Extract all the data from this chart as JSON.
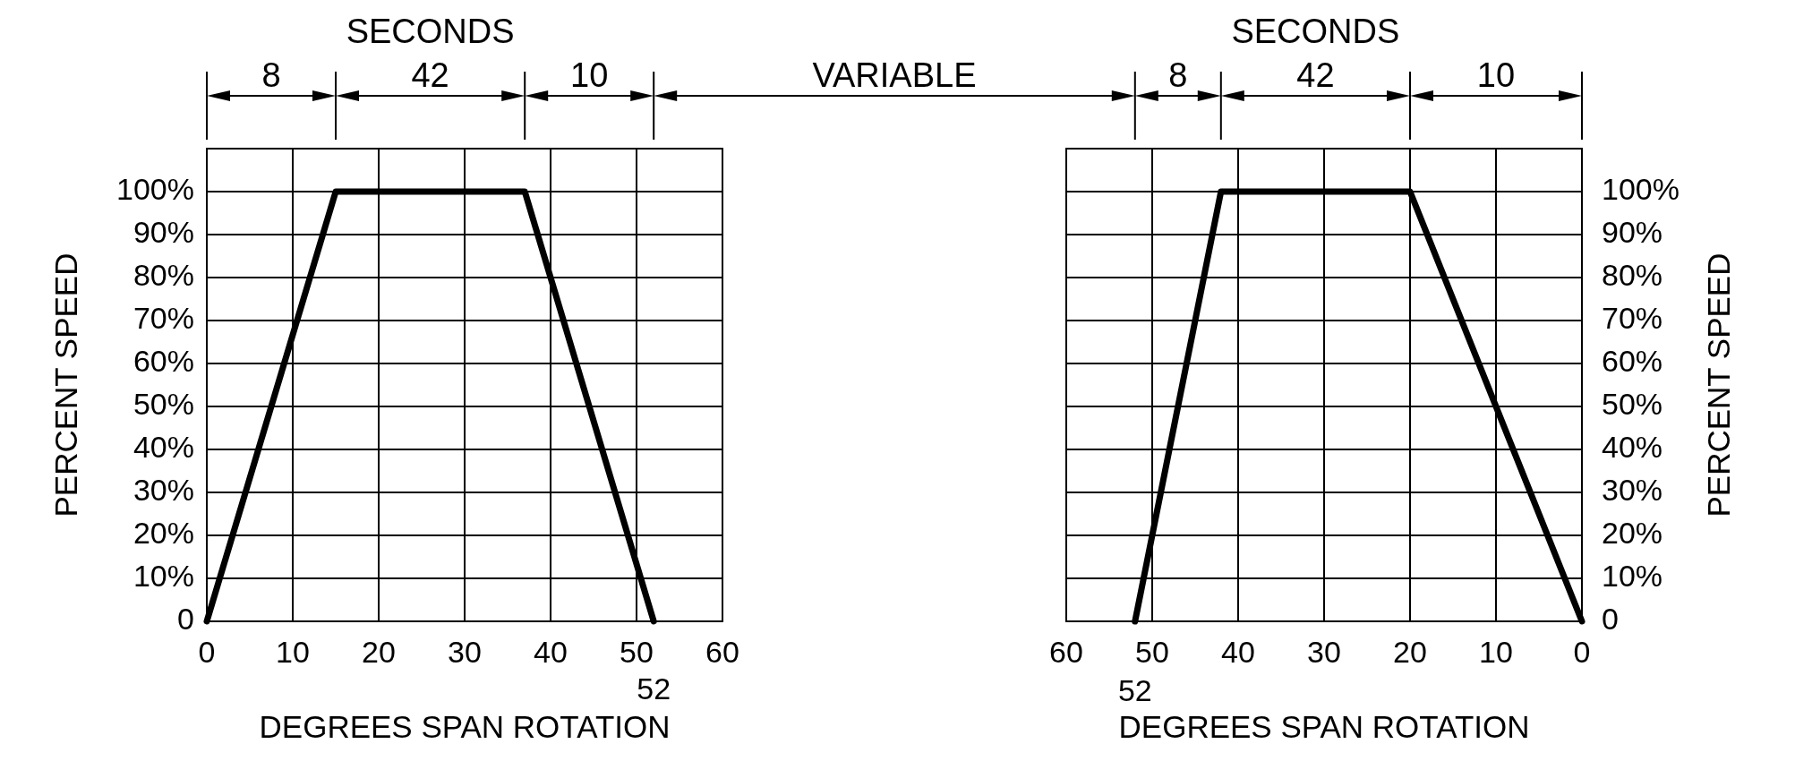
{
  "chart_data": [
    {
      "type": "line",
      "xlabel": "DEGREES SPAN ROTATION",
      "ylabel": "PERCENT SPEED",
      "x": [
        0,
        15,
        37,
        52
      ],
      "series": [
        {
          "color": "#000000",
          "values": [
            0,
            100,
            100,
            0
          ]
        }
      ],
      "xlim": [
        0,
        60
      ],
      "xticks": [
        0,
        10,
        20,
        30,
        40,
        50,
        60
      ],
      "ylim": [
        0,
        110
      ],
      "yticks": [
        0,
        {
          "value": 10,
          "label": "10%"
        },
        {
          "value": 20,
          "label": "20%"
        },
        {
          "value": 30,
          "label": "30%"
        },
        {
          "value": 40,
          "label": "40%"
        },
        {
          "value": 50,
          "label": "50%"
        },
        {
          "value": 60,
          "label": "60%"
        },
        {
          "value": 70,
          "label": "70%"
        },
        {
          "value": 80,
          "label": "80%"
        },
        {
          "value": 90,
          "label": "90%"
        },
        {
          "value": 100,
          "label": "100%"
        }
      ],
      "grid": true,
      "annotations": [
        "SECONDS",
        "8",
        "42",
        "10",
        "VARIABLE",
        {
          "text": "52",
          "x": 52,
          "y": 0
        }
      ]
    },
    {
      "type": "line",
      "xlabel": "DEGREES SPAN ROTATION",
      "y2label": "PERCENT SPEED",
      "x": [
        0,
        20,
        42,
        52
      ],
      "series": [
        {
          "color": "#000000",
          "axis": "y2",
          "values": [
            0,
            100,
            100,
            0
          ]
        }
      ],
      "xlim": [
        60,
        0
      ],
      "xticks": [
        60,
        50,
        40,
        30,
        20,
        10,
        0
      ],
      "y2lim": [
        0,
        110
      ],
      "y2ticks": [
        0,
        {
          "value": 10,
          "label": "10%"
        },
        {
          "value": 20,
          "label": "20%"
        },
        {
          "value": 30,
          "label": "30%"
        },
        {
          "value": 40,
          "label": "40%"
        },
        {
          "value": 50,
          "label": "50%"
        },
        {
          "value": 60,
          "label": "60%"
        },
        {
          "value": 70,
          "label": "70%"
        },
        {
          "value": 80,
          "label": "80%"
        },
        {
          "value": 90,
          "label": "90%"
        },
        {
          "value": 100,
          "label": "100%"
        }
      ],
      "grid": true,
      "annotations": [
        "SECONDS",
        "8",
        "42",
        "10",
        "52"
      ]
    }
  ]
}
